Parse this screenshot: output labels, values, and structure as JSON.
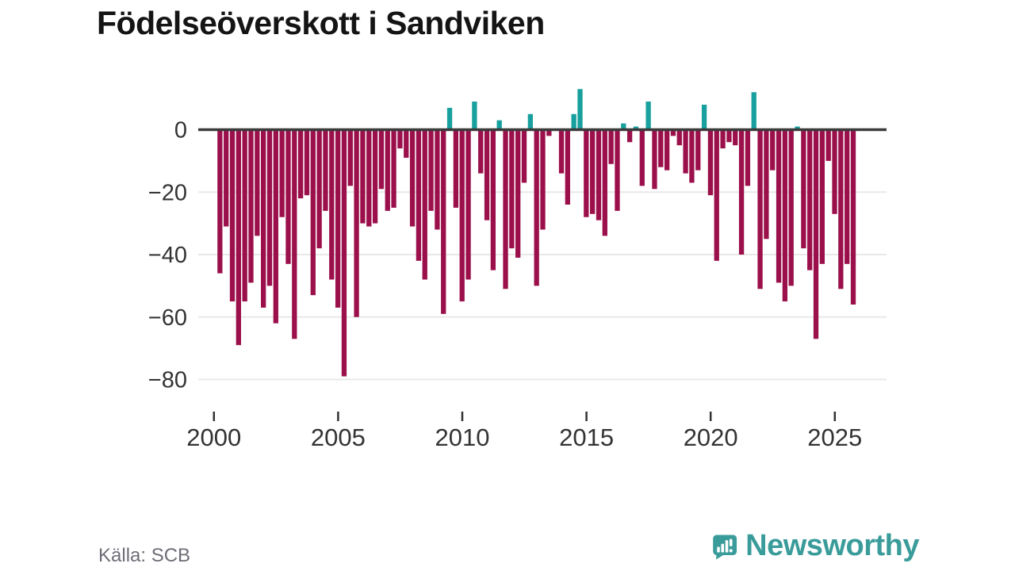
{
  "title": "Födelseöverskott i Sandviken",
  "source": "Källa: SCB",
  "logo": {
    "text": "Newsworthy"
  },
  "colors": {
    "negative": "#9B104B",
    "positive": "#17A09D",
    "zero_line": "#3B3B3B",
    "grid": "#E8E8E8",
    "axis_text": "#333333",
    "source_text": "#6D6D77",
    "logo": "#3A9C9A",
    "title": "#141414",
    "background": "#FFFFFF"
  },
  "chart_data": {
    "type": "bar",
    "title": "Födelseöverskott i Sandviken",
    "xlabel": "",
    "ylabel": "",
    "frequency": "quarterly",
    "start_period": "2000-Q1",
    "end_period": "2025-Q3",
    "x_tick_labels": [
      "2000",
      "2005",
      "2010",
      "2015",
      "2020",
      "2025"
    ],
    "x_tick_years": [
      2000,
      2005,
      2010,
      2015,
      2020,
      2025
    ],
    "y_ticks": [
      0,
      -20,
      -40,
      -60,
      -80
    ],
    "y_tick_labels": [
      "0",
      "−20",
      "−40",
      "−60",
      "−80"
    ],
    "ylim": [
      -84,
      16
    ],
    "grid": "horizontal",
    "legend": "none",
    "series": [
      {
        "name": "Födelseöverskott",
        "values": [
          -46,
          -31,
          -55,
          -69,
          -55,
          -49,
          -34,
          -57,
          -50,
          -62,
          -28,
          -43,
          -67,
          -22,
          -21,
          -53,
          -38,
          -26,
          -48,
          -57,
          -79,
          -18,
          -60,
          -30,
          -31,
          -30,
          -19,
          -26,
          -25,
          -6,
          -9,
          -31,
          -42,
          -48,
          -26,
          -32,
          -59,
          7,
          -25,
          -55,
          -48,
          9,
          -14,
          -29,
          -45,
          3,
          -51,
          -38,
          -41,
          -17,
          5,
          -50,
          -32,
          -2,
          0,
          -14,
          -24,
          5,
          13,
          -28,
          -27,
          -29,
          -34,
          -11,
          -26,
          2,
          -4,
          1,
          -18,
          9,
          -19,
          -12,
          -13,
          -2,
          -5,
          -14,
          -17,
          -13,
          8,
          -21,
          -42,
          -6,
          -4,
          -5,
          -40,
          -18,
          12,
          -51,
          -35,
          -13,
          -49,
          -55,
          -50,
          1,
          -38,
          -45,
          -67,
          -43,
          -10,
          -27,
          -51,
          -43,
          -56
        ]
      }
    ]
  }
}
